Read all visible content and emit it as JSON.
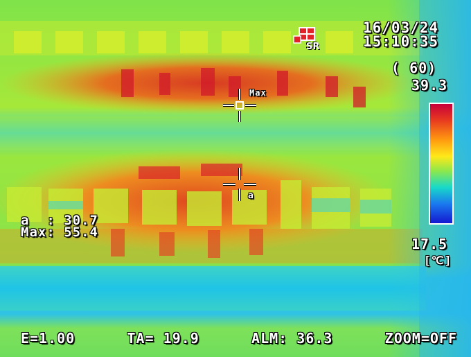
{
  "header": {
    "date": "16/03/24",
    "time": "15:10:35",
    "logo_text": "SR"
  },
  "scale": {
    "range": "( 60)",
    "max": "39.3",
    "min": "17.5",
    "unit": "[℃]"
  },
  "spots": {
    "a_line": "a  : 30.7",
    "max_line": "Max: 55.4",
    "marker_max_label": "Max",
    "marker_a_label": "a"
  },
  "status_bar": {
    "emissivity": "E=1.00",
    "ambient": "TA= 19.9",
    "alarm": "ALM: 36.3",
    "zoom": "ZOOM=OFF"
  },
  "colors": {
    "palette_hot": "#c8003a",
    "palette_cold": "#1418d0",
    "osd_text": "#ffffff"
  }
}
